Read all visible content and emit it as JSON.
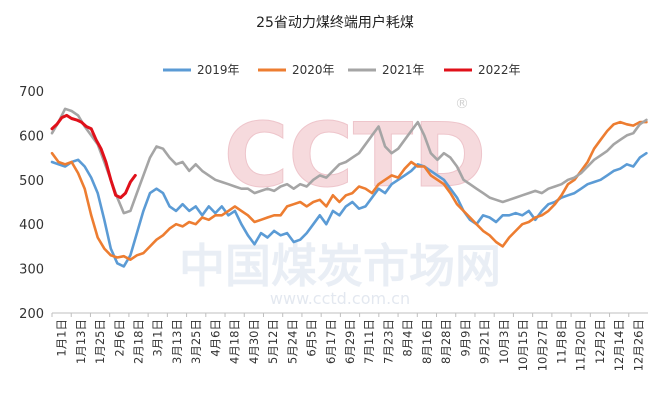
{
  "chart_data": {
    "type": "line",
    "title": "25省动力煤终端用户耗煤",
    "xlabel": "",
    "ylabel": "",
    "ylim": [
      200,
      700
    ],
    "yticks": [
      200,
      300,
      400,
      500,
      600,
      700
    ],
    "xticks": [
      "1月1日",
      "1月13日",
      "1月25日",
      "2月6日",
      "2月18日",
      "3月1日",
      "3月13日",
      "3月25日",
      "4月6日",
      "4月18日",
      "4月30日",
      "5月12日",
      "5月24日",
      "6月5日",
      "6月17日",
      "6月29日",
      "7月11日",
      "7月23日",
      "8月4日",
      "8月16日",
      "8月28日",
      "9月9日",
      "9月21日",
      "10月3日",
      "10月15日",
      "10月27日",
      "11月8日",
      "11月20日",
      "12月2日",
      "12月14日",
      "12月26日"
    ],
    "x_unit": "day_of_year",
    "x_domain": [
      1,
      366
    ],
    "grid": false,
    "legend_position": "top",
    "watermark": {
      "cn": "中国煤炭市场网",
      "en": "www.cctd.com.cn",
      "logo": "CCTD"
    },
    "series": [
      {
        "name": "2019年",
        "color": "#5B9BD5",
        "points": [
          [
            1,
            540
          ],
          [
            5,
            535
          ],
          [
            9,
            530
          ],
          [
            13,
            540
          ],
          [
            17,
            545
          ],
          [
            21,
            530
          ],
          [
            25,
            505
          ],
          [
            29,
            470
          ],
          [
            33,
            410
          ],
          [
            37,
            345
          ],
          [
            41,
            312
          ],
          [
            45,
            305
          ],
          [
            49,
            330
          ],
          [
            53,
            380
          ],
          [
            57,
            430
          ],
          [
            61,
            470
          ],
          [
            65,
            480
          ],
          [
            69,
            470
          ],
          [
            73,
            440
          ],
          [
            77,
            430
          ],
          [
            81,
            445
          ],
          [
            85,
            430
          ],
          [
            89,
            440
          ],
          [
            93,
            420
          ],
          [
            97,
            440
          ],
          [
            101,
            425
          ],
          [
            105,
            440
          ],
          [
            109,
            420
          ],
          [
            113,
            430
          ],
          [
            117,
            400
          ],
          [
            121,
            375
          ],
          [
            125,
            355
          ],
          [
            129,
            380
          ],
          [
            133,
            370
          ],
          [
            137,
            385
          ],
          [
            141,
            375
          ],
          [
            145,
            380
          ],
          [
            149,
            360
          ],
          [
            153,
            365
          ],
          [
            157,
            380
          ],
          [
            161,
            400
          ],
          [
            165,
            420
          ],
          [
            169,
            400
          ],
          [
            173,
            430
          ],
          [
            177,
            420
          ],
          [
            181,
            440
          ],
          [
            185,
            450
          ],
          [
            189,
            435
          ],
          [
            193,
            440
          ],
          [
            197,
            460
          ],
          [
            201,
            480
          ],
          [
            205,
            470
          ],
          [
            209,
            490
          ],
          [
            213,
            500
          ],
          [
            217,
            510
          ],
          [
            221,
            520
          ],
          [
            225,
            535
          ],
          [
            229,
            530
          ],
          [
            233,
            520
          ],
          [
            237,
            510
          ],
          [
            241,
            500
          ],
          [
            245,
            480
          ],
          [
            249,
            460
          ],
          [
            253,
            430
          ],
          [
            257,
            410
          ],
          [
            261,
            400
          ],
          [
            265,
            420
          ],
          [
            269,
            415
          ],
          [
            273,
            405
          ],
          [
            277,
            420
          ],
          [
            281,
            420
          ],
          [
            285,
            425
          ],
          [
            289,
            420
          ],
          [
            293,
            430
          ],
          [
            297,
            410
          ],
          [
            301,
            430
          ],
          [
            305,
            445
          ],
          [
            309,
            450
          ],
          [
            313,
            460
          ],
          [
            317,
            465
          ],
          [
            321,
            470
          ],
          [
            325,
            480
          ],
          [
            329,
            490
          ],
          [
            333,
            495
          ],
          [
            337,
            500
          ],
          [
            341,
            510
          ],
          [
            345,
            520
          ],
          [
            349,
            525
          ],
          [
            353,
            535
          ],
          [
            357,
            530
          ],
          [
            361,
            550
          ],
          [
            365,
            560
          ]
        ]
      },
      {
        "name": "2020年",
        "color": "#ED7D31",
        "points": [
          [
            1,
            560
          ],
          [
            5,
            540
          ],
          [
            9,
            535
          ],
          [
            13,
            540
          ],
          [
            17,
            515
          ],
          [
            21,
            480
          ],
          [
            25,
            420
          ],
          [
            29,
            370
          ],
          [
            33,
            345
          ],
          [
            37,
            330
          ],
          [
            41,
            325
          ],
          [
            45,
            328
          ],
          [
            49,
            320
          ],
          [
            53,
            330
          ],
          [
            57,
            335
          ],
          [
            61,
            350
          ],
          [
            65,
            365
          ],
          [
            69,
            375
          ],
          [
            73,
            390
          ],
          [
            77,
            400
          ],
          [
            81,
            395
          ],
          [
            85,
            405
          ],
          [
            89,
            400
          ],
          [
            93,
            415
          ],
          [
            97,
            410
          ],
          [
            101,
            420
          ],
          [
            105,
            420
          ],
          [
            109,
            430
          ],
          [
            113,
            440
          ],
          [
            117,
            430
          ],
          [
            121,
            420
          ],
          [
            125,
            405
          ],
          [
            129,
            410
          ],
          [
            133,
            415
          ],
          [
            137,
            420
          ],
          [
            141,
            420
          ],
          [
            145,
            440
          ],
          [
            149,
            445
          ],
          [
            153,
            450
          ],
          [
            157,
            440
          ],
          [
            161,
            450
          ],
          [
            165,
            455
          ],
          [
            169,
            440
          ],
          [
            173,
            465
          ],
          [
            177,
            450
          ],
          [
            181,
            465
          ],
          [
            185,
            470
          ],
          [
            189,
            485
          ],
          [
            193,
            480
          ],
          [
            197,
            470
          ],
          [
            201,
            490
          ],
          [
            205,
            500
          ],
          [
            209,
            510
          ],
          [
            213,
            505
          ],
          [
            217,
            525
          ],
          [
            221,
            540
          ],
          [
            225,
            530
          ],
          [
            229,
            530
          ],
          [
            233,
            510
          ],
          [
            237,
            500
          ],
          [
            241,
            490
          ],
          [
            245,
            470
          ],
          [
            249,
            445
          ],
          [
            253,
            430
          ],
          [
            257,
            415
          ],
          [
            261,
            400
          ],
          [
            265,
            385
          ],
          [
            269,
            375
          ],
          [
            273,
            360
          ],
          [
            277,
            350
          ],
          [
            281,
            370
          ],
          [
            285,
            385
          ],
          [
            289,
            400
          ],
          [
            293,
            405
          ],
          [
            297,
            415
          ],
          [
            301,
            420
          ],
          [
            305,
            430
          ],
          [
            309,
            445
          ],
          [
            313,
            465
          ],
          [
            317,
            490
          ],
          [
            321,
            500
          ],
          [
            325,
            520
          ],
          [
            329,
            540
          ],
          [
            333,
            570
          ],
          [
            337,
            590
          ],
          [
            341,
            610
          ],
          [
            345,
            625
          ],
          [
            349,
            630
          ],
          [
            353,
            625
          ],
          [
            357,
            622
          ],
          [
            361,
            630
          ],
          [
            365,
            630
          ]
        ]
      },
      {
        "name": "2021年",
        "color": "#A5A5A5",
        "points": [
          [
            1,
            605
          ],
          [
            5,
            630
          ],
          [
            9,
            660
          ],
          [
            13,
            655
          ],
          [
            17,
            645
          ],
          [
            21,
            620
          ],
          [
            25,
            600
          ],
          [
            29,
            580
          ],
          [
            33,
            540
          ],
          [
            37,
            500
          ],
          [
            41,
            460
          ],
          [
            45,
            425
          ],
          [
            49,
            430
          ],
          [
            53,
            470
          ],
          [
            57,
            510
          ],
          [
            61,
            550
          ],
          [
            65,
            575
          ],
          [
            69,
            570
          ],
          [
            73,
            550
          ],
          [
            77,
            535
          ],
          [
            81,
            540
          ],
          [
            85,
            520
          ],
          [
            89,
            535
          ],
          [
            93,
            520
          ],
          [
            97,
            510
          ],
          [
            101,
            500
          ],
          [
            105,
            495
          ],
          [
            109,
            490
          ],
          [
            113,
            485
          ],
          [
            117,
            480
          ],
          [
            121,
            480
          ],
          [
            125,
            470
          ],
          [
            129,
            475
          ],
          [
            133,
            480
          ],
          [
            137,
            475
          ],
          [
            141,
            485
          ],
          [
            145,
            490
          ],
          [
            149,
            480
          ],
          [
            153,
            490
          ],
          [
            157,
            485
          ],
          [
            161,
            500
          ],
          [
            165,
            510
          ],
          [
            169,
            505
          ],
          [
            173,
            520
          ],
          [
            177,
            535
          ],
          [
            181,
            540
          ],
          [
            185,
            550
          ],
          [
            189,
            560
          ],
          [
            193,
            580
          ],
          [
            197,
            600
          ],
          [
            201,
            620
          ],
          [
            205,
            575
          ],
          [
            209,
            560
          ],
          [
            213,
            570
          ],
          [
            217,
            590
          ],
          [
            221,
            610
          ],
          [
            225,
            630
          ],
          [
            229,
            600
          ],
          [
            233,
            560
          ],
          [
            237,
            545
          ],
          [
            241,
            560
          ],
          [
            245,
            550
          ],
          [
            249,
            530
          ],
          [
            253,
            500
          ],
          [
            257,
            490
          ],
          [
            261,
            480
          ],
          [
            265,
            470
          ],
          [
            269,
            460
          ],
          [
            273,
            455
          ],
          [
            277,
            450
          ],
          [
            281,
            455
          ],
          [
            285,
            460
          ],
          [
            289,
            465
          ],
          [
            293,
            470
          ],
          [
            297,
            475
          ],
          [
            301,
            470
          ],
          [
            305,
            480
          ],
          [
            309,
            485
          ],
          [
            313,
            490
          ],
          [
            317,
            500
          ],
          [
            321,
            505
          ],
          [
            325,
            515
          ],
          [
            329,
            530
          ],
          [
            333,
            545
          ],
          [
            337,
            555
          ],
          [
            341,
            565
          ],
          [
            345,
            580
          ],
          [
            349,
            590
          ],
          [
            353,
            600
          ],
          [
            357,
            605
          ],
          [
            361,
            625
          ],
          [
            365,
            635
          ]
        ]
      },
      {
        "name": "2022年",
        "color": "#E0101A",
        "points": [
          [
            1,
            615
          ],
          [
            4,
            625
          ],
          [
            7,
            640
          ],
          [
            10,
            645
          ],
          [
            13,
            638
          ],
          [
            16,
            635
          ],
          [
            19,
            630
          ],
          [
            22,
            620
          ],
          [
            25,
            615
          ],
          [
            28,
            590
          ],
          [
            31,
            570
          ],
          [
            34,
            540
          ],
          [
            37,
            500
          ],
          [
            40,
            465
          ],
          [
            43,
            460
          ],
          [
            46,
            470
          ],
          [
            49,
            495
          ],
          [
            52,
            510
          ]
        ]
      }
    ]
  }
}
